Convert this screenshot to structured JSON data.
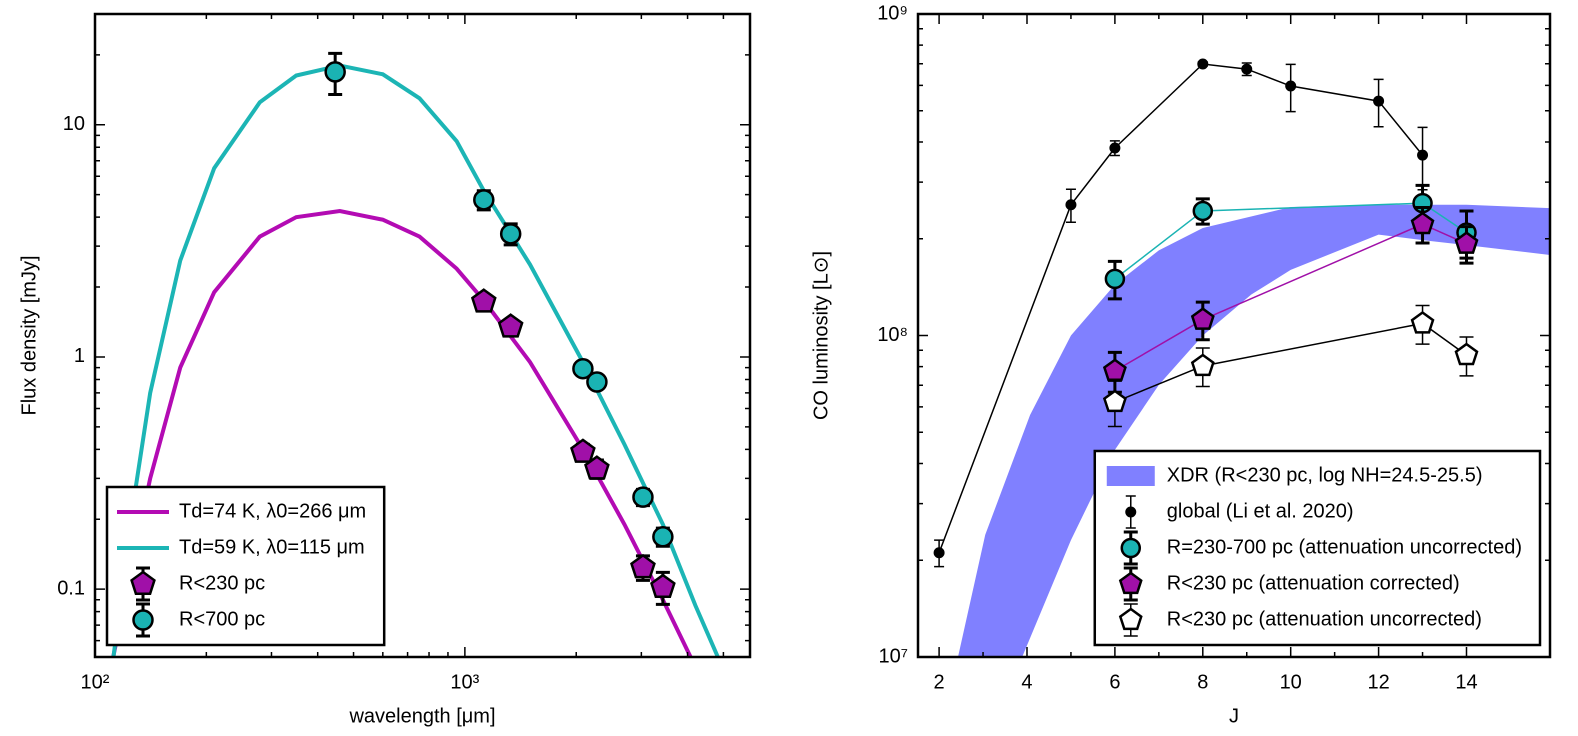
{
  "chart_data": [
    {
      "type": "line",
      "xlabel": "wavelength [μm]",
      "ylabel": "Flux density [mJy]",
      "xlog": true,
      "ylog": true,
      "xlim": [
        100,
        5900
      ],
      "ylim": [
        0.051,
        30
      ],
      "xticks": [
        {
          "value": 100,
          "label": "10²"
        },
        {
          "value": 1000,
          "label": "10³"
        }
      ],
      "yticks": [
        0.1,
        1,
        10
      ],
      "legend": "lower left",
      "series": [
        {
          "name": "Td=74 K, λ0=266 μm",
          "color": "#b30bb3",
          "width": 4,
          "marker": "none",
          "x": [
            112,
            125,
            141,
            170,
            210,
            279,
            350,
            459,
            600,
            754,
            950,
            1125,
            1500,
            2085,
            2700,
            3430,
            4100
          ],
          "values": [
            0.051,
            0.12,
            0.3,
            0.9,
            1.9,
            3.3,
            4.0,
            4.25,
            3.9,
            3.3,
            2.4,
            1.75,
            0.95,
            0.4,
            0.19,
            0.09,
            0.05
          ]
        },
        {
          "name": "Td=59 K, λ0=115 μm",
          "color": "#1cb5b5",
          "width": 4,
          "marker": "none",
          "x": [
            112,
            125,
            141,
            170,
            210,
            279,
            350,
            459,
            600,
            754,
            950,
            1125,
            1330,
            1500,
            2085,
            2700,
            3430,
            4200,
            4830
          ],
          "values": [
            0.05,
            0.2,
            0.7,
            2.6,
            6.5,
            12.5,
            16.3,
            18,
            16.5,
            13,
            8.5,
            5.2,
            3.4,
            2.5,
            0.95,
            0.42,
            0.19,
            0.085,
            0.051
          ]
        },
        {
          "name": "R<230 pc",
          "color": "#a010a8",
          "edge": "#000",
          "marker": "pentagon",
          "x": [
            1125,
            1330,
            2085,
            2275,
            3030,
            3430
          ],
          "values": [
            1.73,
            1.35,
            0.39,
            0.33,
            0.124,
            0.102
          ],
          "errors": [
            0.1,
            0.08,
            0.03,
            0.03,
            0.015,
            0.016
          ]
        },
        {
          "name": "R<700 pc",
          "color": "#1ab3b3",
          "edge": "#000",
          "marker": "circle",
          "x": [
            446,
            1125,
            1330,
            2085,
            2275,
            3030,
            3430
          ],
          "values": [
            16.9,
            4.75,
            3.39,
            0.89,
            0.78,
            0.249,
            0.168
          ],
          "errors": [
            3.4,
            0.45,
            0.35,
            0.05,
            0.04,
            0.02,
            0.015
          ]
        }
      ]
    },
    {
      "type": "line",
      "xlabel": "J",
      "ylabel": "CO luminosity [L⊙]",
      "ylog": true,
      "xlim": [
        1.52,
        15.9
      ],
      "ylim": [
        10000000,
        1000000000
      ],
      "xticks": [
        2,
        4,
        6,
        8,
        10,
        12,
        14
      ],
      "yticks": [
        {
          "value": 10000000,
          "label": "10⁷"
        },
        {
          "value": 100000000,
          "label": "10⁸"
        },
        {
          "value": 1000000000,
          "label": "10⁹"
        }
      ],
      "legend": "lower right",
      "series": [
        {
          "name": "XDR (R<230 pc, log NH=24.5-25.5)",
          "color": "#8080ff",
          "band": true,
          "x_upper": [
            2.43,
            3.05,
            4.07,
            5,
            6,
            7,
            8,
            10,
            12,
            14,
            15.9
          ],
          "upper": [
            10000000.0,
            24000000.0,
            56600000.0,
            100000000.0,
            144000000.0,
            184000000.0,
            216000000.0,
            251000000.0,
            255000000.0,
            255000000.0,
            249000000.0
          ],
          "x_lower": [
            3.89,
            5,
            6,
            7,
            8,
            9.1,
            10,
            12,
            13,
            14,
            15.9
          ],
          "lower": [
            10000000.0,
            23100000.0,
            44100000.0,
            70200000.0,
            100000000.0,
            134000000.0,
            160000000.0,
            206000000.0,
            198000000.0,
            191000000.0,
            178000000.0
          ]
        },
        {
          "name": "global (Li et al. 2020)",
          "color": "#000000",
          "marker": "dot",
          "line": true,
          "width": 1.5,
          "x": [
            2,
            5,
            6,
            8,
            9,
            10,
            12,
            13
          ],
          "values": [
            21100000.0,
            255000000.0,
            383000000.0,
            699000000.0,
            674000000.0,
            597000000.0,
            536000000.0,
            364000000.0
          ],
          "errors": [
            2000000.0,
            30000000.0,
            20000000.0,
            10000000.0,
            30000000.0,
            100000000.0,
            90000000.0,
            80000000.0
          ]
        },
        {
          "name": "R=230-700 pc (attenuation uncorrected)",
          "color": "#1ab3b3",
          "edge": "#000",
          "marker": "circle",
          "line": true,
          "width": 1.5,
          "x": [
            6,
            8,
            13,
            14
          ],
          "values": [
            150000000.0,
            244000000.0,
            258000000.0,
            209000000.0
          ],
          "errors": [
            20000000.0,
            22000000.0,
            35000000.0,
            35000000.0
          ]
        },
        {
          "name": "R<230 pc (attenuation corrected)",
          "color": "#a010a8",
          "edge": "#000",
          "marker": "pentagon",
          "line": true,
          "width": 1.5,
          "x": [
            6,
            8,
            13,
            14
          ],
          "values": [
            77600000.0,
            112000000.0,
            222000000.0,
            193000000.0
          ],
          "errors": [
            11000000.0,
            15000000.0,
            28000000.0,
            25000000.0
          ]
        },
        {
          "name": "R<230 pc (attenuation uncorrected)",
          "color": "#ffffff",
          "edge": "#000",
          "line_color": "#000000",
          "marker": "pentagon",
          "line": true,
          "width": 1.5,
          "x": [
            6,
            8,
            13,
            14
          ],
          "values": [
            62100000.0,
            80400000.0,
            109000000.0,
            86900000.0
          ],
          "errors": [
            10000000.0,
            11000000.0,
            15000000.0,
            12000000.0
          ]
        }
      ]
    }
  ]
}
